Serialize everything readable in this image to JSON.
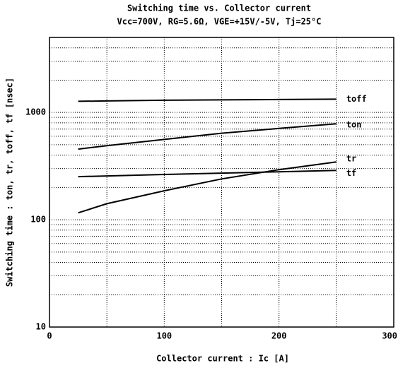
{
  "chart_data": {
    "type": "line",
    "title": "Switching time vs. Collector current",
    "subtitle": "Vcc=700V, RG=5.6Ω, VGE=+15V/-5V, Tj=25°C",
    "x_label": "Collector current : Ic [A]",
    "y_label": "Switching time : ton, tr, toff, tf [nsec]",
    "log_y": true,
    "grid": true,
    "xlim": [
      0,
      300
    ],
    "xticks": [
      0,
      100,
      200,
      300
    ],
    "minor_xticks": [
      50,
      150,
      250
    ],
    "ylim": [
      10,
      5000
    ],
    "yticks": [
      10,
      100,
      1000
    ],
    "minor_yticks": [
      20,
      30,
      40,
      50,
      60,
      70,
      80,
      90,
      200,
      300,
      400,
      500,
      600,
      700,
      800,
      900,
      2000,
      3000,
      4000,
      5000
    ],
    "x": [
      25,
      50,
      100,
      150,
      200,
      250
    ],
    "series": [
      {
        "name": "toff",
        "color": "#000000",
        "values": [
          1270,
          1280,
          1300,
          1310,
          1320,
          1330
        ]
      },
      {
        "name": "ton",
        "color": "#000000",
        "values": [
          455,
          490,
          560,
          640,
          710,
          785
        ]
      },
      {
        "name": "tr",
        "color": "#000000",
        "values": [
          116,
          141,
          186,
          240,
          293,
          346
        ]
      },
      {
        "name": "tf",
        "color": "#000000",
        "values": [
          252,
          256,
          264,
          272,
          280,
          288
        ]
      }
    ]
  }
}
